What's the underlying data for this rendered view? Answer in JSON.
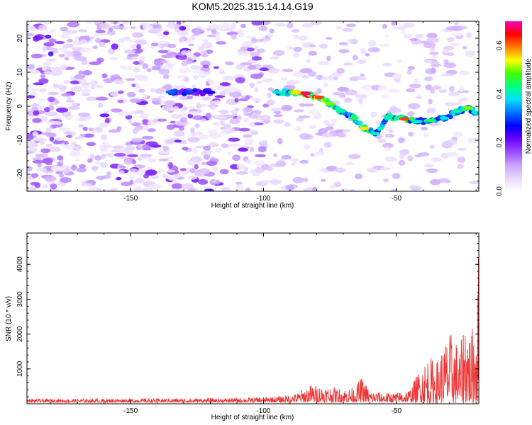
{
  "title": "KOM5.2025.315.14.14.G19",
  "chart_data": [
    {
      "type": "heatmap",
      "name": "spectrogram",
      "xlabel": "Height of straight line (km)",
      "ylabel": "Frequency (Hz)",
      "xlim": [
        -189,
        -19
      ],
      "ylim": [
        -25,
        25
      ],
      "xticks": [
        -150,
        -100,
        -50
      ],
      "yticks": [
        -20,
        -10,
        0,
        10,
        20
      ],
      "colorbar": {
        "label": "Normalized spectral amplitude",
        "range": [
          0.0,
          0.7
        ],
        "ticks": [
          "0.0",
          "0.2",
          "0.4",
          "0.6"
        ],
        "tick_values": [
          0.0,
          0.2,
          0.4,
          0.6
        ],
        "colors": [
          "#ffffff",
          "#e8d8ff",
          "#c9a3ff",
          "#9b4dff",
          "#6a00ff",
          "#0000ff",
          "#0070ff",
          "#00e0ff",
          "#00ff80",
          "#40ff00",
          "#ffff00",
          "#ff8000",
          "#ff0000",
          "#ff00c0"
        ]
      },
      "signal_track": [
        {
          "x": -135,
          "f": 4.2,
          "a": 0.32
        },
        {
          "x": -128,
          "f": 4.2,
          "a": 0.3
        },
        {
          "x": -120,
          "f": 4.1,
          "a": 0.26
        },
        {
          "x": -95,
          "f": 4.2,
          "a": 0.4
        },
        {
          "x": -88,
          "f": 4.0,
          "a": 0.55
        },
        {
          "x": -84,
          "f": 3.8,
          "a": 0.68
        },
        {
          "x": -79,
          "f": 2.6,
          "a": 0.62
        },
        {
          "x": -75,
          "f": 0.8,
          "a": 0.5
        },
        {
          "x": -71,
          "f": -1.5,
          "a": 0.42
        },
        {
          "x": -66,
          "f": -3.5,
          "a": 0.45
        },
        {
          "x": -62,
          "f": -6.5,
          "a": 0.55
        },
        {
          "x": -58,
          "f": -8.0,
          "a": 0.4
        },
        {
          "x": -53,
          "f": -3.0,
          "a": 0.42
        },
        {
          "x": -47,
          "f": -3.7,
          "a": 0.62
        },
        {
          "x": -42,
          "f": -4.5,
          "a": 0.4
        },
        {
          "x": -37,
          "f": -4.2,
          "a": 0.45
        },
        {
          "x": -32,
          "f": -3.5,
          "a": 0.38
        },
        {
          "x": -27,
          "f": -1.5,
          "a": 0.42
        },
        {
          "x": -23,
          "f": -0.5,
          "a": 0.5
        },
        {
          "x": -20,
          "f": -1.8,
          "a": 0.4
        }
      ]
    },
    {
      "type": "line",
      "name": "snr",
      "xlabel": "Height of straight line (km)",
      "ylabel": "SNR (10 * v/v)",
      "xlim": [
        -189,
        -19
      ],
      "ylim": [
        0,
        4900
      ],
      "xticks": [
        -150,
        -100,
        -50
      ],
      "yticks": [
        1000,
        2000,
        3000,
        4000
      ],
      "color": "#ee3333",
      "envelope": {
        "x": [
          -189,
          -170,
          -150,
          -130,
          -110,
          -95,
          -88,
          -82,
          -78,
          -74,
          -70,
          -66,
          -63,
          -60,
          -55,
          -50,
          -45,
          -42,
          -38,
          -35,
          -32,
          -29,
          -26,
          -24,
          -22,
          -20,
          -19
        ],
        "y": [
          140,
          140,
          150,
          155,
          165,
          210,
          290,
          550,
          520,
          480,
          440,
          460,
          780,
          380,
          330,
          320,
          420,
          900,
          1400,
          1200,
          1800,
          2100,
          1600,
          2700,
          2000,
          2800,
          4700
        ]
      }
    }
  ]
}
